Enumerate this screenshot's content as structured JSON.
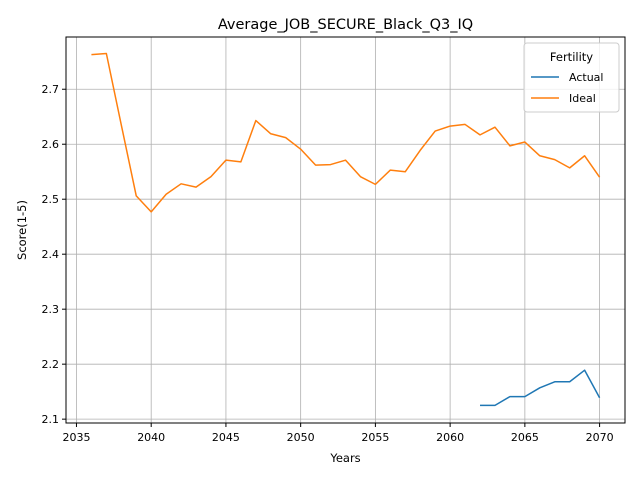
{
  "chart_data": {
    "type": "line",
    "title": "Average_JOB_SECURE_Black_Q3_IQ",
    "xlabel": "Years",
    "ylabel": "Score(1-5)",
    "xlim": [
      2034.3,
      2071.7
    ],
    "ylim": [
      2.093,
      2.795
    ],
    "xticks": [
      2035,
      2040,
      2045,
      2050,
      2055,
      2060,
      2065,
      2070
    ],
    "xtick_labels": [
      "2035",
      "2040",
      "2045",
      "2050",
      "2055",
      "2060",
      "2065",
      "2070"
    ],
    "yticks": [
      2.1,
      2.2,
      2.3,
      2.4,
      2.5,
      2.6,
      2.7
    ],
    "ytick_labels": [
      "2.1",
      "2.2",
      "2.3",
      "2.4",
      "2.5",
      "2.6",
      "2.7"
    ],
    "grid": true,
    "legend": {
      "title": "Fertility",
      "placement": "top-right"
    },
    "series": [
      {
        "name": "Actual",
        "color": "#1f77b4",
        "x": [
          2062,
          2063,
          2064,
          2065,
          2066,
          2067,
          2068,
          2069,
          2070
        ],
        "y": [
          2.125,
          2.125,
          2.141,
          2.141,
          2.157,
          2.168,
          2.168,
          2.189,
          2.139
        ]
      },
      {
        "name": "Ideal",
        "color": "#ff7f0e",
        "x": [
          2036,
          2037,
          2038,
          2039,
          2040,
          2041,
          2042,
          2043,
          2044,
          2045,
          2046,
          2047,
          2048,
          2049,
          2050,
          2051,
          2052,
          2053,
          2054,
          2055,
          2056,
          2057,
          2058,
          2059,
          2060,
          2061,
          2062,
          2063,
          2064,
          2065,
          2066,
          2067,
          2068,
          2069,
          2070
        ],
        "y": [
          2.763,
          2.765,
          2.635,
          2.506,
          2.477,
          2.509,
          2.528,
          2.522,
          2.541,
          2.571,
          2.568,
          2.643,
          2.619,
          2.612,
          2.591,
          2.562,
          2.563,
          2.571,
          2.541,
          2.527,
          2.553,
          2.55,
          2.589,
          2.624,
          2.633,
          2.636,
          2.617,
          2.631,
          2.597,
          2.604,
          2.579,
          2.572,
          2.557,
          2.579,
          2.54
        ]
      }
    ]
  }
}
